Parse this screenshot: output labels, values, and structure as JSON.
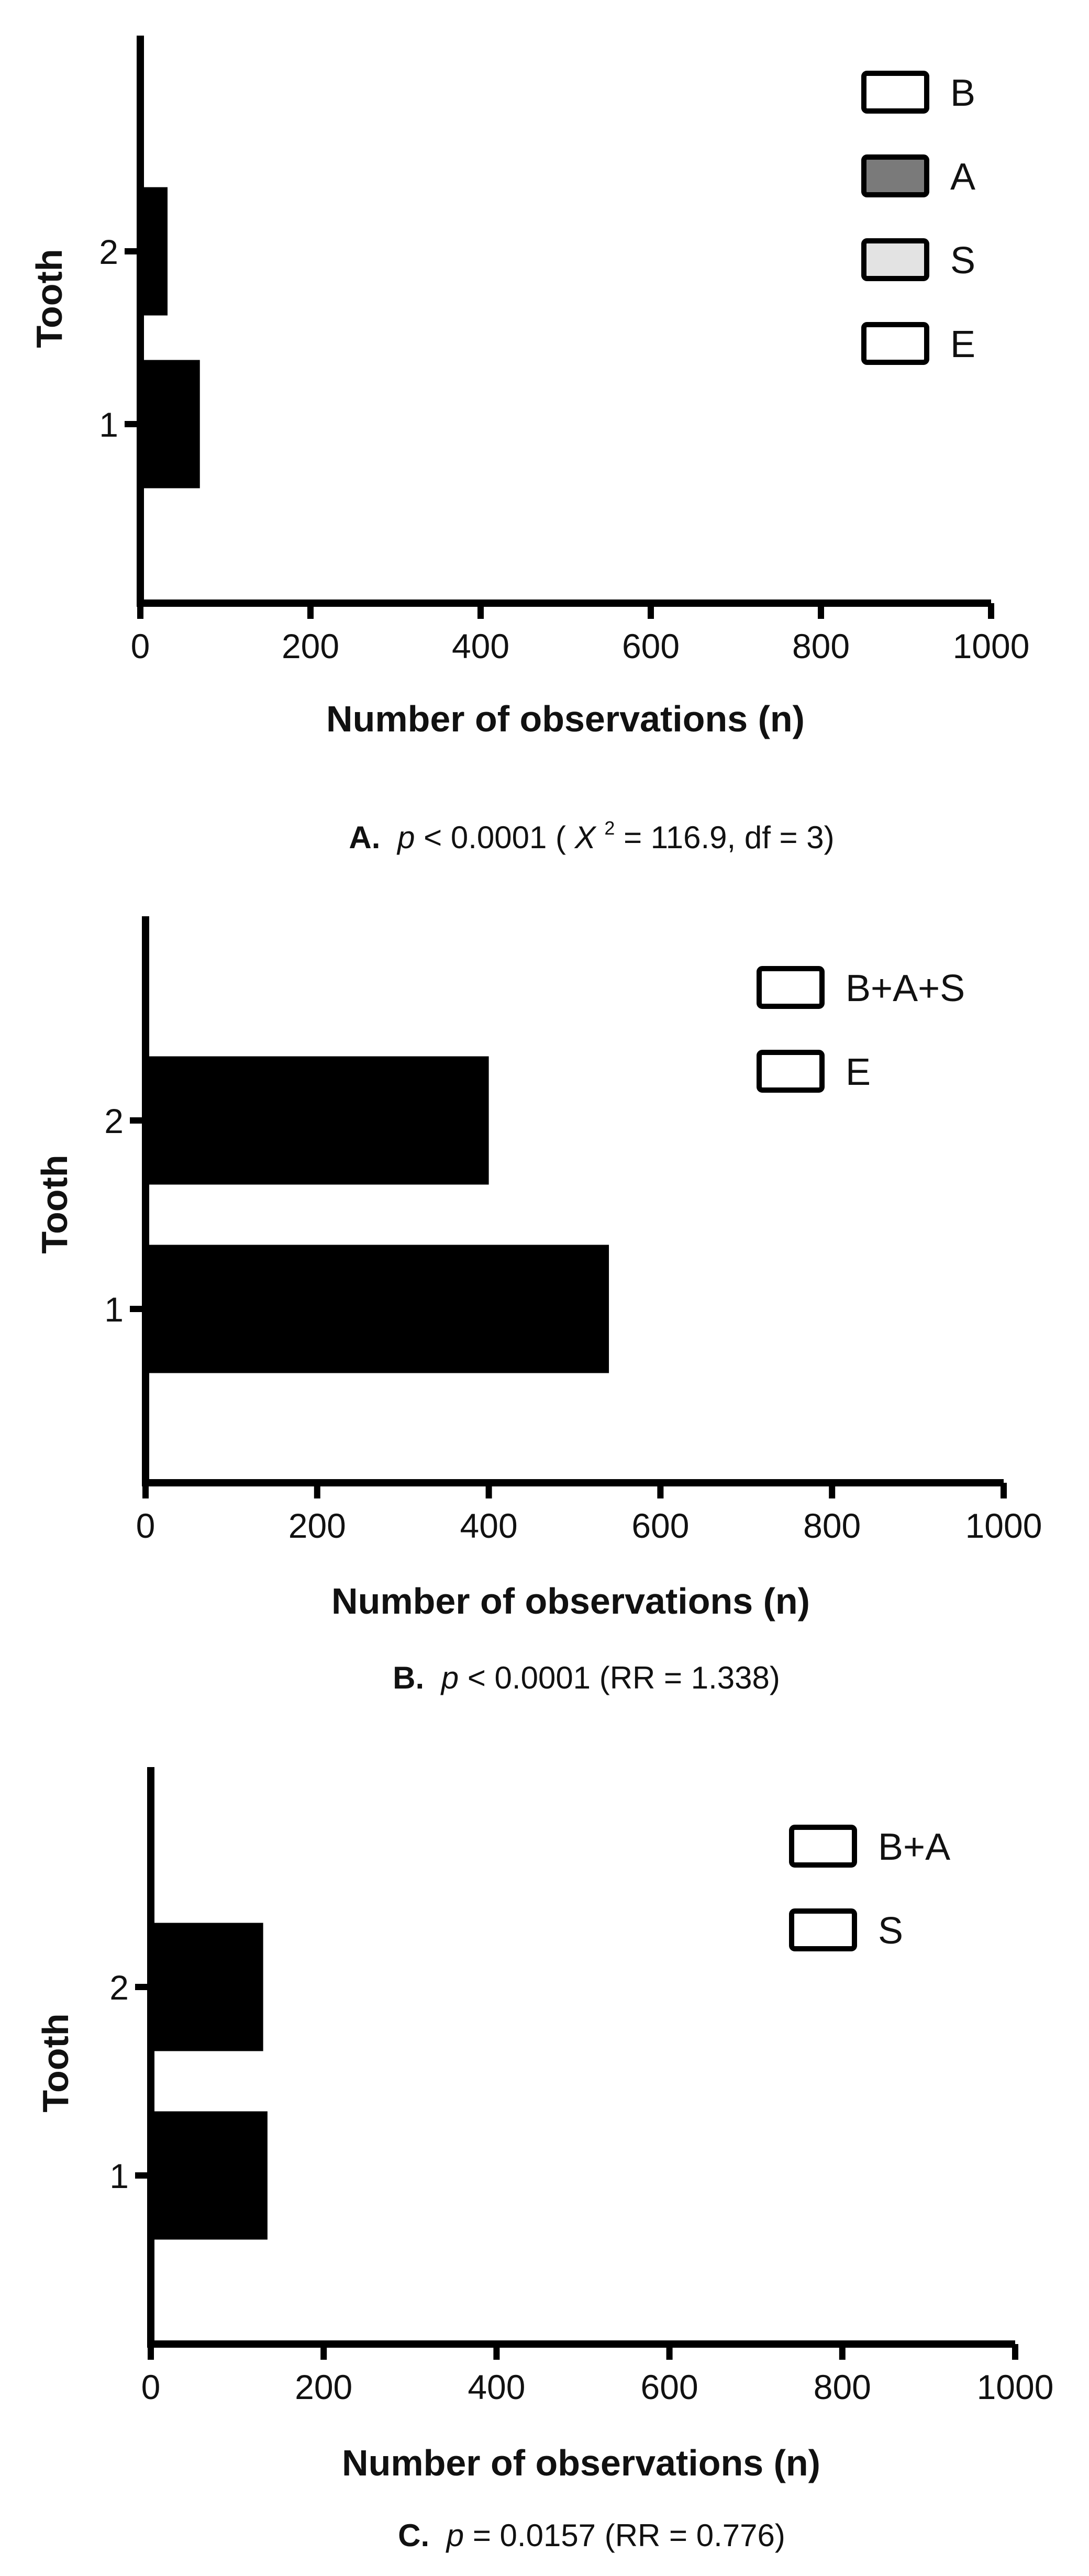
{
  "chart_data": [
    {
      "id": "A",
      "type": "bar",
      "orientation": "horizontal",
      "categories": [
        "1",
        "2"
      ],
      "series": [
        {
          "name": "E",
          "values": [
            70,
            32
          ],
          "color": "#000000"
        },
        {
          "name": "S",
          "values": [
            0,
            0
          ],
          "color": "#e3e3e3"
        },
        {
          "name": "A",
          "values": [
            0,
            0
          ],
          "color": "#7a7a7a"
        },
        {
          "name": "B",
          "values": [
            0,
            0
          ],
          "color": "#ffffff"
        }
      ],
      "legend": [
        {
          "label": "B",
          "color": "#ffffff"
        },
        {
          "label": "A",
          "color": "#7a7a7a"
        },
        {
          "label": "S",
          "color": "#e3e3e3"
        },
        {
          "label": "E",
          "color": "#ffffff"
        }
      ],
      "xticks": [
        "0",
        "200",
        "400",
        "600",
        "800",
        "1000"
      ],
      "xlim": [
        0,
        1000
      ],
      "xlabel": "Number of observations (n)",
      "ylabel": "Tooth",
      "legend_position": "top-right",
      "caption": {
        "letter": "A.",
        "p": "p",
        "rest1": " < 0.0001 (",
        "chi": "X",
        "sup": "2",
        "rest2": " = 116.9, df = 3)"
      }
    },
    {
      "id": "B",
      "type": "bar",
      "orientation": "horizontal",
      "categories": [
        "1",
        "2"
      ],
      "series": [
        {
          "name": "B+A+S",
          "values": [
            540,
            400
          ],
          "color": "#000000"
        },
        {
          "name": "E",
          "values": [
            0,
            0
          ],
          "color": "#ffffff"
        }
      ],
      "legend": [
        {
          "label": "B+A+S",
          "color": "#ffffff"
        },
        {
          "label": "E",
          "color": "#ffffff"
        }
      ],
      "xticks": [
        "0",
        "200",
        "400",
        "600",
        "800",
        "1000"
      ],
      "xlim": [
        0,
        1000
      ],
      "xlabel": "Number of observations (n)",
      "ylabel": "Tooth",
      "legend_position": "top-right",
      "caption": {
        "letter": "B.",
        "p": "p",
        "rest1": " < 0.0001 (RR = 1.338)"
      }
    },
    {
      "id": "C",
      "type": "bar",
      "orientation": "horizontal",
      "categories": [
        "1",
        "2"
      ],
      "series": [
        {
          "name": "B+A",
          "values": [
            135,
            130
          ],
          "color": "#000000"
        },
        {
          "name": "S",
          "values": [
            0,
            0
          ],
          "color": "#ffffff"
        }
      ],
      "legend": [
        {
          "label": "B+A",
          "color": "#ffffff"
        },
        {
          "label": "S",
          "color": "#ffffff"
        }
      ],
      "xticks": [
        "0",
        "200",
        "400",
        "600",
        "800",
        "1000"
      ],
      "xlim": [
        0,
        1000
      ],
      "xlabel": "Number of observations (n)",
      "ylabel": "Tooth",
      "legend_position": "top-right",
      "caption": {
        "letter": "C.",
        "p": "p",
        "rest1": " = 0.0157 (RR = 0.776)"
      }
    }
  ]
}
